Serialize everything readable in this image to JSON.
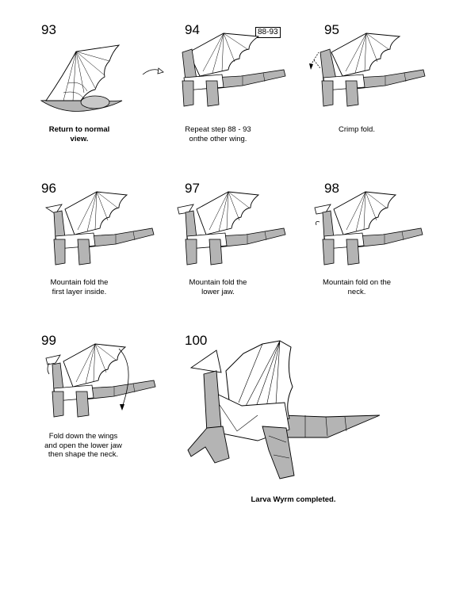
{
  "steps": [
    {
      "number": "93",
      "caption": "Return to normal\nview."
    },
    {
      "number": "94",
      "caption": "Repeat step 88 - 93\nonthe other wing.",
      "reference": "88-93"
    },
    {
      "number": "95",
      "caption": "Crimp fold."
    },
    {
      "number": "96",
      "caption": "Mountain fold the\nfirst layer inside."
    },
    {
      "number": "97",
      "caption": "Mountain fold the\nlower jaw."
    },
    {
      "number": "98",
      "caption": "Mountain fold on the\nneck."
    },
    {
      "number": "99",
      "caption": "Fold down the wings\nand open the lower jaw\nthen shape the neck."
    },
    {
      "number": "100",
      "caption": "Larva Wyrm completed."
    }
  ],
  "colors": {
    "paper_gray": "#b4b4b4",
    "paper_white": "#ffffff",
    "line": "#000000"
  }
}
